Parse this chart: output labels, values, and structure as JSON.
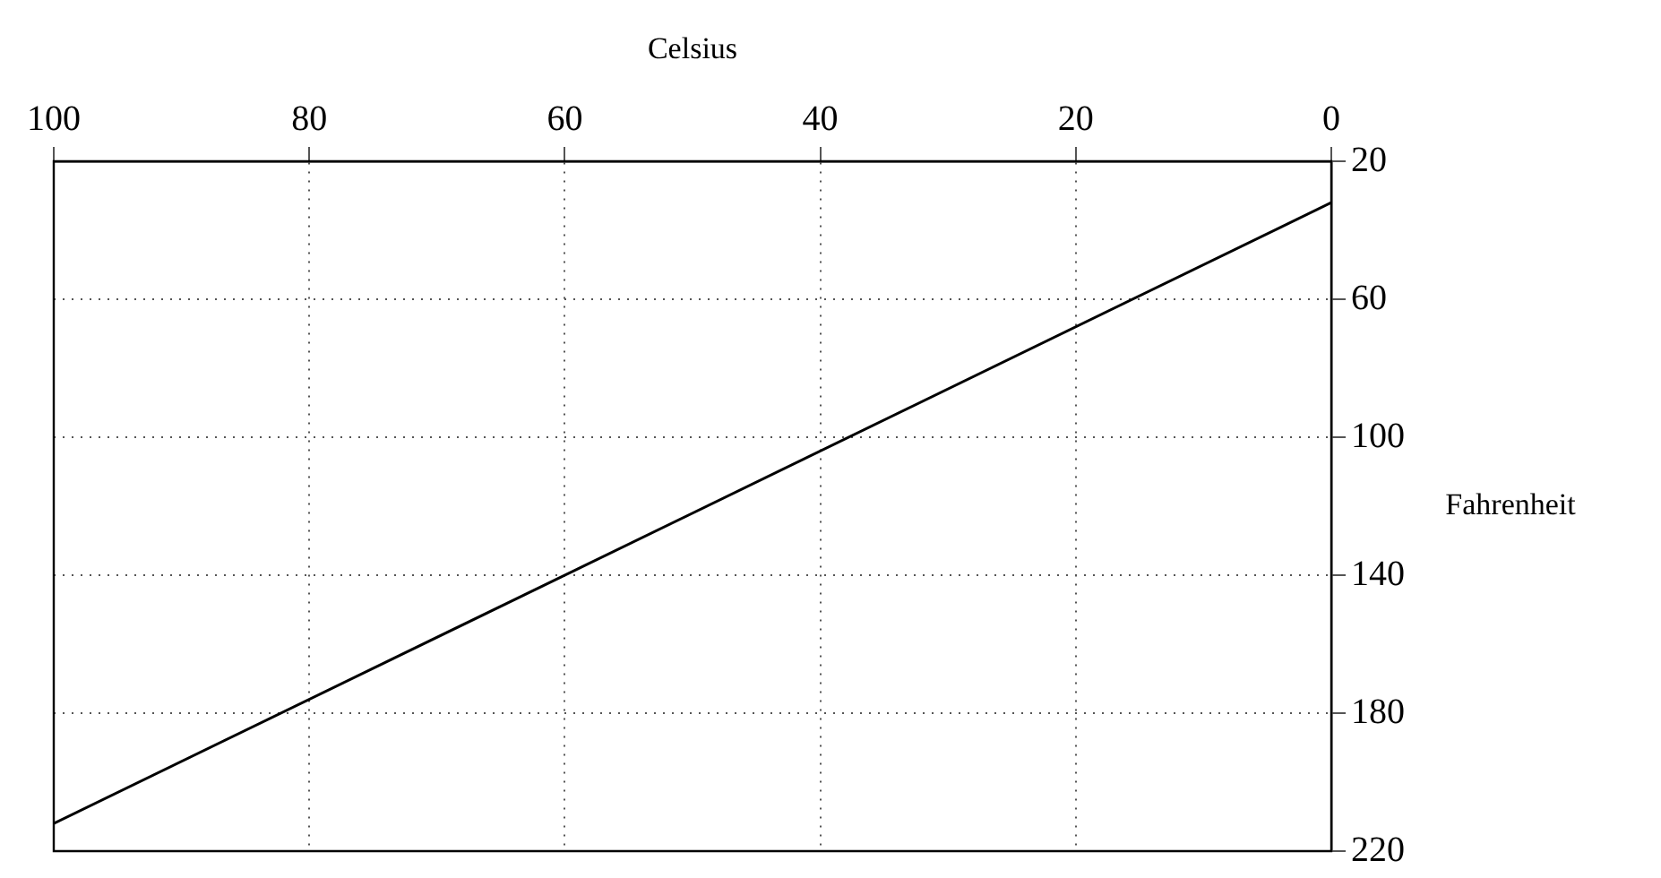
{
  "chart_data": {
    "type": "line",
    "xlabel": "Celsius",
    "ylabel": "Fahrenheit",
    "x": [
      0,
      100
    ],
    "series": [
      {
        "color": "#000000",
        "values": [
          32,
          212
        ]
      }
    ],
    "xlim": [
      100,
      0
    ],
    "xticks": [
      0,
      20,
      40,
      60,
      80,
      100
    ],
    "ylim": [
      220,
      20
    ],
    "yticks": [
      20,
      60,
      100,
      140,
      180,
      220
    ],
    "grid": true,
    "legend": false,
    "marker": "none",
    "line_style": "solid"
  }
}
